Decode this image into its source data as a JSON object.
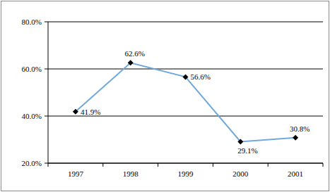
{
  "chart_data": {
    "type": "line",
    "categories": [
      "1997",
      "1998",
      "1999",
      "2000",
      "2001"
    ],
    "values": [
      41.9,
      62.6,
      56.6,
      29.1,
      30.8
    ],
    "value_labels": [
      "41.9%",
      "62.6%",
      "56.6%",
      "29.1%",
      "30.8%"
    ],
    "color": "#6fa8dc",
    "marker": "diamond",
    "data_labels": true,
    "grid": true,
    "ylim": [
      20,
      80
    ],
    "yticks": [
      {
        "value": 20,
        "label": "20.0%"
      },
      {
        "value": 40,
        "label": "40.0%"
      },
      {
        "value": 60,
        "label": "60.0%"
      },
      {
        "value": 80,
        "label": "80.0%"
      }
    ]
  }
}
